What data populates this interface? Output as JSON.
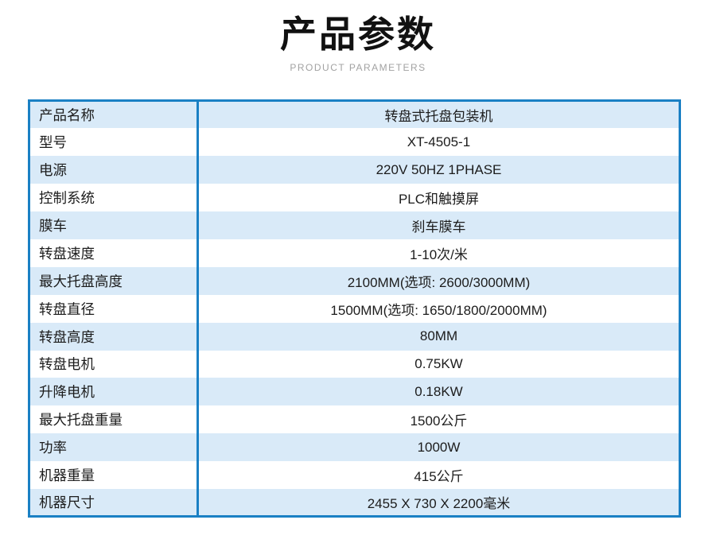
{
  "header": {
    "title": "产品参数",
    "subtitle": "PRODUCT PARAMETERS"
  },
  "table": {
    "rows": [
      {
        "label": "产品名称",
        "value": "转盘式托盘包装机"
      },
      {
        "label": "型号",
        "value": "XT-4505-1"
      },
      {
        "label": "电源",
        "value": "220V 50HZ 1PHASE"
      },
      {
        "label": "控制系统",
        "value": "PLC和触摸屏"
      },
      {
        "label": "膜车",
        "value": "刹车膜车"
      },
      {
        "label": "转盘速度",
        "value": "1-10次/米"
      },
      {
        "label": "最大托盘高度",
        "value": "2100MM(选项: 2600/3000MM)"
      },
      {
        "label": "转盘直径",
        "value": "1500MM(选项: 1650/1800/2000MM)"
      },
      {
        "label": "转盘高度",
        "value": "80MM"
      },
      {
        "label": "转盘电机",
        "value": "0.75KW"
      },
      {
        "label": "升降电机",
        "value": "0.18KW"
      },
      {
        "label": "最大托盘重量",
        "value": "1500公斤"
      },
      {
        "label": "功率",
        "value": "1000W"
      },
      {
        "label": "机器重量",
        "value": "415公斤"
      },
      {
        "label": "机器尺寸",
        "value": "2455 X 730 X 2200毫米"
      }
    ]
  },
  "colors": {
    "border_blue": "#1a80c4",
    "row_alt_blue": "#d9eaf8",
    "subtitle_gray": "#a2a2a2",
    "title_black": "#111111"
  }
}
